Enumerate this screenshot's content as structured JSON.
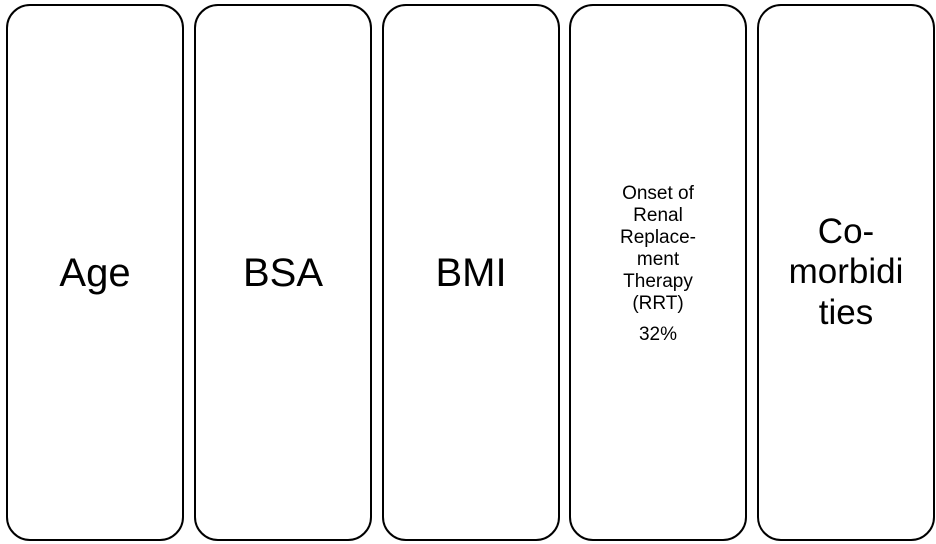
{
  "panels": [
    {
      "label": "Age"
    },
    {
      "label": "BSA"
    },
    {
      "label": "BMI"
    },
    {
      "label": "Onset of\nRenal\nReplace-\nment\nTherapy\n(RRT)",
      "value": "32%"
    },
    {
      "label": "Co-\nmorbidi\nties"
    }
  ]
}
